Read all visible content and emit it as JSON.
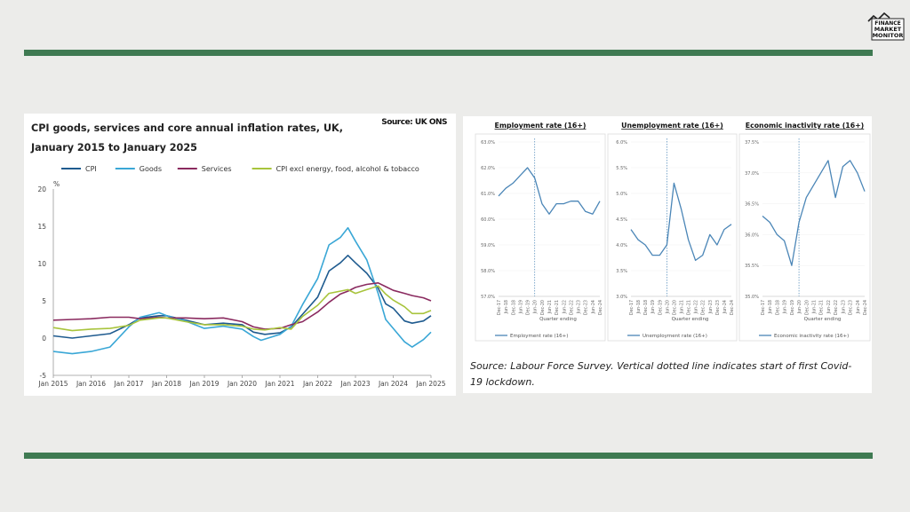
{
  "logo": {
    "line1": "FINANCE",
    "line2": "MARKET",
    "line3": "MONITOR"
  },
  "left_panel": {
    "title": "CPI goods, services and core annual inflation rates, UK, January 2015 to January 2025",
    "source": "Source: UK ONS"
  },
  "right_panel": {
    "source_note": "Source: Labour Force Survey. Vertical dotted line indicates start of first Covid-19 lockdown."
  },
  "colors": {
    "cpi": "#1f5b8f",
    "goods": "#3aa7d6",
    "services": "#8a2a5f",
    "core": "#a8c43c",
    "bar": "#3f7a52",
    "small": "#4b86b7"
  },
  "chart_data": [
    {
      "type": "line",
      "title": "CPI goods, services and core annual inflation rates, UK, January 2015 to January 2025",
      "ylabel": "%",
      "ylim": [
        -5,
        20
      ],
      "yticks": [
        -5,
        0,
        5,
        10,
        15,
        20
      ],
      "xticks": [
        "Jan 2015",
        "Jan 2016",
        "Jan 2017",
        "Jan 2018",
        "Jan 2019",
        "Jan 2020",
        "Jan 2021",
        "Jan 2022",
        "Jan 2023",
        "Jan 2024",
        "Jan 2025"
      ],
      "xrange": [
        2015,
        2025
      ],
      "legend": "top",
      "series": [
        {
          "name": "CPI",
          "key": "cpi",
          "points": [
            [
              2015,
              0.3
            ],
            [
              2015.5,
              0
            ],
            [
              2016,
              0.3
            ],
            [
              2016.5,
              0.6
            ],
            [
              2017,
              1.8
            ],
            [
              2017.3,
              2.7
            ],
            [
              2017.8,
              3.0
            ],
            [
              2018,
              3.0
            ],
            [
              2018.5,
              2.4
            ],
            [
              2019,
              1.8
            ],
            [
              2019.5,
              2.0
            ],
            [
              2020,
              1.8
            ],
            [
              2020.3,
              0.8
            ],
            [
              2020.6,
              0.5
            ],
            [
              2021,
              0.7
            ],
            [
              2021.3,
              1.5
            ],
            [
              2021.6,
              3.2
            ],
            [
              2022,
              5.5
            ],
            [
              2022.3,
              9.0
            ],
            [
              2022.6,
              10.1
            ],
            [
              2022.8,
              11.1
            ],
            [
              2023,
              10.1
            ],
            [
              2023.3,
              8.7
            ],
            [
              2023.6,
              6.7
            ],
            [
              2023.8,
              4.6
            ],
            [
              2024,
              4.0
            ],
            [
              2024.3,
              2.3
            ],
            [
              2024.5,
              2.0
            ],
            [
              2024.8,
              2.3
            ],
            [
              2025,
              3.0
            ]
          ]
        },
        {
          "name": "Goods",
          "key": "goods",
          "points": [
            [
              2015,
              -1.8
            ],
            [
              2015.5,
              -2.1
            ],
            [
              2016,
              -1.8
            ],
            [
              2016.5,
              -1.2
            ],
            [
              2017,
              1.5
            ],
            [
              2017.3,
              2.8
            ],
            [
              2017.8,
              3.4
            ],
            [
              2018,
              3.0
            ],
            [
              2018.5,
              2.3
            ],
            [
              2019,
              1.3
            ],
            [
              2019.5,
              1.6
            ],
            [
              2020,
              1.2
            ],
            [
              2020.3,
              0.2
            ],
            [
              2020.5,
              -0.3
            ],
            [
              2021,
              0.5
            ],
            [
              2021.3,
              1.6
            ],
            [
              2021.6,
              4.5
            ],
            [
              2022,
              8.0
            ],
            [
              2022.3,
              12.5
            ],
            [
              2022.6,
              13.5
            ],
            [
              2022.8,
              14.8
            ],
            [
              2023,
              13.0
            ],
            [
              2023.3,
              10.5
            ],
            [
              2023.6,
              6.0
            ],
            [
              2023.8,
              2.5
            ],
            [
              2024,
              1.3
            ],
            [
              2024.3,
              -0.5
            ],
            [
              2024.5,
              -1.2
            ],
            [
              2024.8,
              -0.2
            ],
            [
              2025,
              0.8
            ]
          ]
        },
        {
          "name": "Services",
          "key": "services",
          "points": [
            [
              2015,
              2.4
            ],
            [
              2015.5,
              2.5
            ],
            [
              2016,
              2.6
            ],
            [
              2016.5,
              2.8
            ],
            [
              2017,
              2.8
            ],
            [
              2017.3,
              2.6
            ],
            [
              2017.8,
              2.8
            ],
            [
              2018,
              2.7
            ],
            [
              2018.5,
              2.7
            ],
            [
              2019,
              2.6
            ],
            [
              2019.5,
              2.7
            ],
            [
              2020,
              2.2
            ],
            [
              2020.3,
              1.5
            ],
            [
              2020.6,
              1.2
            ],
            [
              2021,
              1.3
            ],
            [
              2021.3,
              1.8
            ],
            [
              2021.6,
              2.2
            ],
            [
              2022,
              3.5
            ],
            [
              2022.3,
              4.8
            ],
            [
              2022.6,
              5.9
            ],
            [
              2022.8,
              6.3
            ],
            [
              2023,
              6.8
            ],
            [
              2023.3,
              7.2
            ],
            [
              2023.6,
              7.4
            ],
            [
              2023.8,
              6.9
            ],
            [
              2024,
              6.4
            ],
            [
              2024.3,
              6.0
            ],
            [
              2024.5,
              5.7
            ],
            [
              2024.8,
              5.4
            ],
            [
              2025,
              5.0
            ]
          ]
        },
        {
          "name": "CPI excl energy, food, alcohol & tobacco",
          "key": "core",
          "points": [
            [
              2015,
              1.4
            ],
            [
              2015.5,
              1.0
            ],
            [
              2016,
              1.2
            ],
            [
              2016.5,
              1.3
            ],
            [
              2017,
              1.7
            ],
            [
              2017.3,
              2.4
            ],
            [
              2017.8,
              2.7
            ],
            [
              2018,
              2.7
            ],
            [
              2018.5,
              2.2
            ],
            [
              2019,
              1.8
            ],
            [
              2019.5,
              1.8
            ],
            [
              2020,
              1.6
            ],
            [
              2020.3,
              1.2
            ],
            [
              2020.6,
              1.1
            ],
            [
              2021,
              1.4
            ],
            [
              2021.3,
              1.2
            ],
            [
              2021.6,
              2.9
            ],
            [
              2022,
              4.4
            ],
            [
              2022.3,
              6.0
            ],
            [
              2022.6,
              6.3
            ],
            [
              2022.8,
              6.5
            ],
            [
              2023,
              6.0
            ],
            [
              2023.3,
              6.5
            ],
            [
              2023.6,
              7.0
            ],
            [
              2023.8,
              5.9
            ],
            [
              2024,
              5.1
            ],
            [
              2024.3,
              4.2
            ],
            [
              2024.5,
              3.3
            ],
            [
              2024.8,
              3.3
            ],
            [
              2025,
              3.7
            ]
          ]
        }
      ]
    },
    {
      "type": "line",
      "title": "Employment rate (16+)",
      "ylim": [
        57,
        63
      ],
      "yticks": [
        "57.0%",
        "58.0%",
        "59.0%",
        "60.0%",
        "61.0%",
        "62.0%",
        "63.0%"
      ],
      "xlabel": "Quarter ending",
      "xticks": [
        "Dec-17",
        "Jun-18",
        "Dec-18",
        "Jun-19",
        "Dec-19",
        "Jun-20",
        "Dec-20",
        "Jun-21",
        "Dec-21",
        "Jun-22",
        "Dec-22",
        "Jun-23",
        "Dec-23",
        "Jun-24",
        "Dec-24"
      ],
      "covid_index": 5,
      "legend": "Employment rate (16+)",
      "values": [
        60.9,
        61.2,
        61.4,
        61.7,
        62.0,
        61.6,
        60.6,
        60.2,
        60.6,
        60.6,
        60.7,
        60.7,
        60.3,
        60.2,
        60.7
      ]
    },
    {
      "type": "line",
      "title": "Unemployment rate (16+)",
      "ylim": [
        3,
        6
      ],
      "yticks": [
        "3.0%",
        "3.5%",
        "4.0%",
        "4.5%",
        "5.0%",
        "5.5%",
        "6.0%"
      ],
      "xlabel": "Quarter ending",
      "xticks": [
        "Dec-17",
        "Jun-18",
        "Dec-18",
        "Jun-19",
        "Dec-19",
        "Jun-20",
        "Dec-20",
        "Jun-21",
        "Dec-21",
        "Jun-22",
        "Dec-22",
        "Jun-23",
        "Dec-23",
        "Jun-24",
        "Dec-24"
      ],
      "covid_index": 5,
      "legend": "Unemployment rate (16+)",
      "values": [
        4.3,
        4.1,
        4.0,
        3.8,
        3.8,
        4.0,
        5.2,
        4.7,
        4.1,
        3.7,
        3.8,
        4.2,
        4.0,
        4.3,
        4.4
      ]
    },
    {
      "type": "line",
      "title": "Economic inactivity rate (16+)",
      "ylim": [
        35,
        37.5
      ],
      "yticks": [
        "35.0%",
        "35.5%",
        "36.0%",
        "36.5%",
        "37.0%",
        "37.5%"
      ],
      "xlabel": "Quarter ending",
      "xticks": [
        "Dec-17",
        "Jun-18",
        "Dec-18",
        "Jun-19",
        "Dec-19",
        "Jun-20",
        "Dec-20",
        "Jun-21",
        "Dec-21",
        "Jun-22",
        "Dec-22",
        "Jun-23",
        "Dec-23",
        "Jun-24",
        "Dec-24"
      ],
      "covid_index": 5,
      "legend": "Economic inactivity rate (16+)",
      "values": [
        36.3,
        36.2,
        36.0,
        35.9,
        35.5,
        36.2,
        36.6,
        36.8,
        37.0,
        37.2,
        36.6,
        37.1,
        37.2,
        37.0,
        36.7
      ]
    }
  ]
}
